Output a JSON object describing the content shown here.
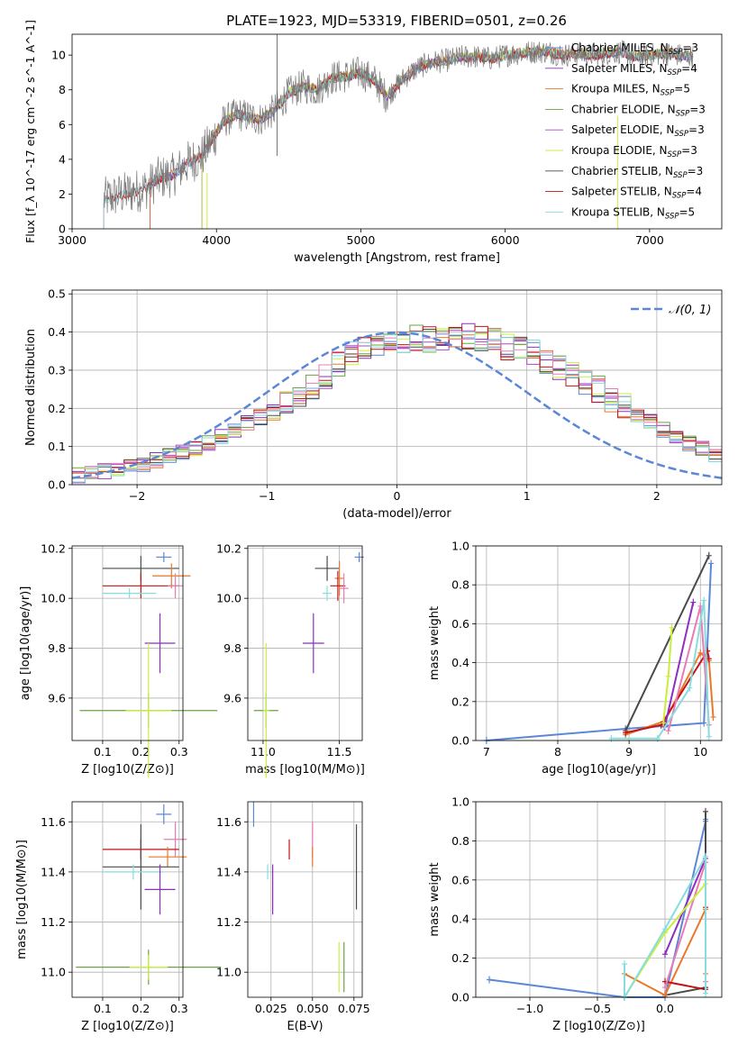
{
  "figure_title": "PLATE=1923, MJD=53319, FIBERID=0501, z=0.26",
  "colors": {
    "Chabrier MILES": "#5b87d6",
    "Salpeter MILES": "#8e2ec1",
    "Kroupa MILES": "#e8782a",
    "Chabrier ELODIE": "#6da145",
    "Salpeter ELODIE": "#b245c9",
    "Kroupa ELODIE": "#c9ef3d",
    "Chabrier STELIB": "#4a4a4a",
    "Salpeter STELIB": "#c41414",
    "Kroupa STELIB": "#87dce0",
    "Pink": "#e87bb5",
    "Normal": "#5b87d6"
  },
  "chart_data": [
    {
      "id": "spectrum",
      "type": "line",
      "title": "PLATE=1923, MJD=53319, FIBERID=0501, z=0.26",
      "xlabel": "wavelength [Angstrom, rest frame]",
      "ylabel": "Flux [f_λ 10^-17 erg cm^-2 s^-1 A^-1]",
      "xlim": [
        3000,
        7500
      ],
      "ylim": [
        0,
        11.2
      ],
      "xticks": [
        "3000",
        "4000",
        "5000",
        "6000",
        "7000"
      ],
      "yticks": [
        "0",
        "2",
        "4",
        "6",
        "8",
        "10"
      ],
      "legend_position": "top-right",
      "legend": [
        {
          "name": "Chabrier MILES, N_SSP=3"
        },
        {
          "name": "Salpeter MILES, N_SSP=4"
        },
        {
          "name": "Kroupa MILES, N_SSP=5"
        },
        {
          "name": "Chabrier ELODIE, N_SSP=3"
        },
        {
          "name": "Salpeter ELODIE, N_SSP=3"
        },
        {
          "name": "Kroupa ELODIE, N_SSP=3"
        },
        {
          "name": "Chabrier STELIB, N_SSP=3"
        },
        {
          "name": "Salpeter STELIB, N_SSP=4"
        },
        {
          "name": "Kroupa STELIB, N_SSP=5"
        }
      ],
      "model_points": [
        [
          3220,
          1.7
        ],
        [
          3300,
          1.9
        ],
        [
          3400,
          2.1
        ],
        [
          3500,
          2.3
        ],
        [
          3600,
          2.9
        ],
        [
          3700,
          3.1
        ],
        [
          3800,
          3.8
        ],
        [
          3900,
          4.2
        ],
        [
          3960,
          5.0
        ],
        [
          4050,
          6.2
        ],
        [
          4150,
          6.6
        ],
        [
          4300,
          6.3
        ],
        [
          4400,
          6.8
        ],
        [
          4500,
          7.8
        ],
        [
          4600,
          8.2
        ],
        [
          4700,
          8.0
        ],
        [
          4800,
          8.7
        ],
        [
          4900,
          8.8
        ],
        [
          5000,
          9.0
        ],
        [
          5100,
          8.5
        ],
        [
          5180,
          7.6
        ],
        [
          5300,
          8.7
        ],
        [
          5400,
          9.3
        ],
        [
          5500,
          9.6
        ],
        [
          5600,
          9.7
        ],
        [
          5700,
          9.9
        ],
        [
          5800,
          9.9
        ],
        [
          5900,
          9.8
        ],
        [
          6000,
          10.0
        ],
        [
          6100,
          10.1
        ],
        [
          6200,
          10.2
        ],
        [
          6300,
          10.2
        ],
        [
          6400,
          10.0
        ],
        [
          6500,
          10.1
        ],
        [
          6600,
          10.0
        ],
        [
          6700,
          10.1
        ],
        [
          6800,
          10.2
        ],
        [
          6900,
          9.9
        ],
        [
          7000,
          10.0
        ],
        [
          7100,
          10.1
        ],
        [
          7200,
          10.0
        ],
        [
          7300,
          9.9
        ]
      ]
    },
    {
      "id": "residuals",
      "type": "bar",
      "xlabel": "(data-model)/error",
      "ylabel": "Normed distribution",
      "xlim": [
        -2.5,
        2.5
      ],
      "ylim": [
        0,
        0.51
      ],
      "xticks": [
        "−2",
        "−1",
        "0",
        "1",
        "2"
      ],
      "yticks": [
        "0.0",
        "0.1",
        "0.2",
        "0.3",
        "0.4",
        "0.5"
      ],
      "legend_position": "top-right",
      "legend": [
        {
          "name": "𝒩(0, 1)"
        }
      ],
      "bin_width": 0.1,
      "bin_start": -2.5,
      "reference_heights": [
        0.025,
        0.03,
        0.035,
        0.04,
        0.05,
        0.055,
        0.065,
        0.075,
        0.085,
        0.095,
        0.11,
        0.125,
        0.14,
        0.16,
        0.175,
        0.19,
        0.21,
        0.23,
        0.255,
        0.285,
        0.315,
        0.34,
        0.355,
        0.37,
        0.375,
        0.37,
        0.385,
        0.38,
        0.38,
        0.385,
        0.39,
        0.385,
        0.375,
        0.36,
        0.355,
        0.345,
        0.325,
        0.305,
        0.29,
        0.27,
        0.25,
        0.225,
        0.205,
        0.185,
        0.165,
        0.145,
        0.125,
        0.11,
        0.095,
        0.08
      ]
    },
    {
      "id": "age-vs-Z",
      "type": "scatter",
      "xlabel": "Z [log10(Z/Z⊙)]",
      "ylabel": "age  [log10(age/yr)]",
      "xlim": [
        0.02,
        0.31
      ],
      "ylim": [
        9.43,
        10.21
      ],
      "xticks": [
        "0.1",
        "0.2",
        "0.3"
      ],
      "yticks": [
        "9.6",
        "9.8",
        "10.0",
        "10.2"
      ],
      "points": [
        {
          "series": "Chabrier MILES",
          "x": 0.26,
          "y": 10.165,
          "xerr": 0.02,
          "yerr": 0.02
        },
        {
          "series": "Chabrier STELIB",
          "x": 0.2,
          "y": 10.12,
          "xerr": 0.1,
          "yerr": 0.05
        },
        {
          "series": "Kroupa MILES",
          "x": 0.28,
          "y": 10.09,
          "xerr": 0.05,
          "yerr": 0.05
        },
        {
          "series": "Salpeter STELIB",
          "x": 0.2,
          "y": 10.05,
          "xerr": 0.1,
          "yerr": 0.05
        },
        {
          "series": "Pink",
          "x": 0.29,
          "y": 10.05,
          "xerr": 0.02,
          "yerr": 0.05
        },
        {
          "series": "Kroupa STELIB",
          "x": 0.17,
          "y": 10.02,
          "xerr": 0.07,
          "yerr": 0.02
        },
        {
          "series": "Salpeter MILES",
          "x": 0.25,
          "y": 9.82,
          "xerr": 0.04,
          "yerr": 0.12
        },
        {
          "series": "Chabrier ELODIE",
          "x": 0.22,
          "y": 9.55,
          "xerr": 0.18,
          "yerr": 0.07
        },
        {
          "series": "Kroupa ELODIE",
          "x": 0.22,
          "y": 9.55,
          "xerr": 0.06,
          "yerr": 0.27
        }
      ]
    },
    {
      "id": "age-vs-mass",
      "type": "scatter",
      "xlabel": "mass [log10(M/M⊙)]",
      "ylabel": "",
      "xlim": [
        10.9,
        11.65
      ],
      "ylim": [
        9.43,
        10.21
      ],
      "xticks": [
        "11.0",
        "11.5"
      ],
      "yticks": [
        "9.6",
        "9.8",
        "10.0",
        "10.2"
      ],
      "points": [
        {
          "series": "Chabrier MILES",
          "x": 11.63,
          "y": 10.165,
          "xerr": 0.03,
          "yerr": 0.02
        },
        {
          "series": "Chabrier STELIB",
          "x": 11.42,
          "y": 10.12,
          "xerr": 0.08,
          "yerr": 0.05
        },
        {
          "series": "Kroupa MILES",
          "x": 11.5,
          "y": 10.08,
          "xerr": 0.03,
          "yerr": 0.07
        },
        {
          "series": "Salpeter STELIB",
          "x": 11.49,
          "y": 10.05,
          "xerr": 0.05,
          "yerr": 0.06
        },
        {
          "series": "Pink",
          "x": 11.53,
          "y": 10.04,
          "xerr": 0.03,
          "yerr": 0.06
        },
        {
          "series": "Kroupa STELIB",
          "x": 11.42,
          "y": 10.02,
          "xerr": 0.03,
          "yerr": 0.03
        },
        {
          "series": "Salpeter MILES",
          "x": 11.33,
          "y": 9.82,
          "xerr": 0.07,
          "yerr": 0.12
        },
        {
          "series": "Chabrier ELODIE",
          "x": 11.02,
          "y": 9.55,
          "xerr": 0.08,
          "yerr": 0.07
        },
        {
          "series": "Kroupa ELODIE",
          "x": 11.02,
          "y": 9.55,
          "xerr": 0.02,
          "yerr": 0.27
        }
      ]
    },
    {
      "id": "massweight-vs-age",
      "type": "line",
      "xlabel": "age  [log10(age/yr)]",
      "ylabel": "mass weight",
      "xlim": [
        6.85,
        10.3
      ],
      "ylim": [
        0,
        1.0
      ],
      "xticks": [
        "7",
        "8",
        "9",
        "10"
      ],
      "yticks": [
        "0.0",
        "0.2",
        "0.4",
        "0.6",
        "0.8",
        "1.0"
      ],
      "series": [
        {
          "color": "Chabrier MILES",
          "x": [
            7.0,
            8.95,
            10.05,
            10.15
          ],
          "y": [
            0.0,
            0.06,
            0.09,
            0.91
          ]
        },
        {
          "color": "Chabrier STELIB",
          "x": [
            8.95,
            10.12
          ],
          "y": [
            0.05,
            0.95
          ]
        },
        {
          "color": "Kroupa MILES",
          "x": [
            8.95,
            9.5,
            10.0,
            10.12,
            10.18
          ],
          "y": [
            0.03,
            0.1,
            0.45,
            0.41,
            0.12
          ]
        },
        {
          "color": "Salpeter STELIB",
          "x": [
            8.95,
            9.45,
            10.1,
            10.12
          ],
          "y": [
            0.04,
            0.08,
            0.46,
            0.42
          ]
        },
        {
          "color": "Salpeter MILES",
          "x": [
            9.5,
            9.9
          ],
          "y": [
            0.07,
            0.71
          ]
        },
        {
          "color": "Pink",
          "x": [
            9.55,
            10.0,
            10.12
          ],
          "y": [
            0.05,
            0.69,
            0.08
          ]
        },
        {
          "color": "Kroupa ELODIE",
          "x": [
            9.48,
            9.55,
            9.6
          ],
          "y": [
            0.09,
            0.33,
            0.58
          ]
        },
        {
          "color": "Kroupa STELIB",
          "x": [
            8.75,
            9.4,
            9.85,
            10.05,
            10.12
          ],
          "y": [
            0.01,
            0.01,
            0.27,
            0.72,
            0.02
          ]
        }
      ]
    },
    {
      "id": "mass-vs-Z",
      "type": "scatter",
      "xlabel": "Z [log10(Z/Z⊙)]",
      "ylabel": "mass [log10(M/M⊙)]",
      "xlim": [
        0.02,
        0.31
      ],
      "ylim": [
        10.9,
        11.68
      ],
      "xticks": [
        "0.1",
        "0.2",
        "0.3"
      ],
      "yticks": [
        "11.0",
        "11.2",
        "11.4",
        "11.6"
      ],
      "points": [
        {
          "series": "Chabrier MILES",
          "x": 0.26,
          "y": 11.63,
          "xerr": 0.02,
          "yerr": 0.04
        },
        {
          "series": "Pink",
          "x": 0.29,
          "y": 11.53,
          "xerr": 0.03,
          "yerr": 0.07
        },
        {
          "series": "Salpeter STELIB",
          "x": 0.2,
          "y": 11.49,
          "xerr": 0.1,
          "yerr": 0.04
        },
        {
          "series": "Kroupa MILES",
          "x": 0.27,
          "y": 11.46,
          "xerr": 0.05,
          "yerr": 0.04
        },
        {
          "series": "Chabrier STELIB",
          "x": 0.2,
          "y": 11.42,
          "xerr": 0.1,
          "yerr": 0.17
        },
        {
          "series": "Kroupa STELIB",
          "x": 0.18,
          "y": 11.4,
          "xerr": 0.08,
          "yerr": 0.03
        },
        {
          "series": "Salpeter MILES",
          "x": 0.25,
          "y": 11.33,
          "xerr": 0.04,
          "yerr": 0.1
        },
        {
          "series": "Chabrier ELODIE",
          "x": 0.22,
          "y": 11.02,
          "xerr": 0.19,
          "yerr": 0.07
        },
        {
          "series": "Kroupa ELODIE",
          "x": 0.22,
          "y": 11.02,
          "xerr": 0.05,
          "yerr": 0.05
        }
      ]
    },
    {
      "id": "mass-vs-ebv",
      "type": "scatter",
      "xlabel": "E(B-V)",
      "ylabel": "",
      "xlim": [
        0.011,
        0.08
      ],
      "ylim": [
        10.9,
        11.68
      ],
      "xticks": [
        "0.025",
        "0.050",
        "0.075"
      ],
      "yticks": [
        "11.0",
        "11.2",
        "11.4",
        "11.6"
      ],
      "points": [
        {
          "series": "Chabrier MILES",
          "x": 0.0145,
          "y": 11.63,
          "xerr": 0,
          "yerr": 0.05
        },
        {
          "series": "Pink",
          "x": 0.05,
          "y": 11.53,
          "xerr": 0,
          "yerr": 0.07
        },
        {
          "series": "Salpeter STELIB",
          "x": 0.036,
          "y": 11.49,
          "xerr": 0,
          "yerr": 0.04
        },
        {
          "series": "Kroupa MILES",
          "x": 0.05,
          "y": 11.46,
          "xerr": 0,
          "yerr": 0.04
        },
        {
          "series": "Chabrier STELIB",
          "x": 0.0765,
          "y": 11.42,
          "xerr": 0,
          "yerr": 0.17
        },
        {
          "series": "Kroupa STELIB",
          "x": 0.023,
          "y": 11.4,
          "xerr": 0,
          "yerr": 0.03
        },
        {
          "series": "Salpeter MILES",
          "x": 0.026,
          "y": 11.33,
          "xerr": 0,
          "yerr": 0.1
        },
        {
          "series": "Chabrier ELODIE",
          "x": 0.069,
          "y": 11.02,
          "xerr": 0,
          "yerr": 0.1
        },
        {
          "series": "Kroupa ELODIE",
          "x": 0.066,
          "y": 11.02,
          "xerr": 0,
          "yerr": 0.1
        }
      ]
    },
    {
      "id": "massweight-vs-Z",
      "type": "line",
      "xlabel": "Z [log10(Z/Z⊙)]",
      "ylabel": "mass weight",
      "xlim": [
        -1.4,
        0.42
      ],
      "ylim": [
        0,
        1.0
      ],
      "xticks": [
        "−1.0",
        "−0.5",
        "0.0"
      ],
      "yticks": [
        "0.0",
        "0.2",
        "0.4",
        "0.6",
        "0.8",
        "1.0"
      ],
      "series": [
        {
          "color": "Chabrier MILES",
          "x": [
            -1.3,
            -0.3,
            0.0,
            0.3,
            0.3
          ],
          "y": [
            0.09,
            0.0,
            0.0,
            0.9,
            0.91
          ]
        },
        {
          "color": "Chabrier STELIB",
          "x": [
            0.0,
            0.3,
            0.3
          ],
          "y": [
            0.01,
            0.05,
            0.95
          ]
        },
        {
          "color": "Kroupa MILES",
          "x": [
            -0.3,
            0.0,
            0.3,
            0.3
          ],
          "y": [
            0.12,
            0.01,
            0.45,
            0.12
          ]
        },
        {
          "color": "Salpeter STELIB",
          "x": [
            0.0,
            0.3,
            0.3
          ],
          "y": [
            0.08,
            0.04,
            0.46
          ]
        },
        {
          "color": "Salpeter MILES",
          "x": [
            0.0,
            0.3
          ],
          "y": [
            0.22,
            0.71
          ]
        },
        {
          "color": "Pink",
          "x": [
            0.0,
            0.3,
            0.3
          ],
          "y": [
            0.05,
            0.69,
            0.08
          ]
        },
        {
          "color": "Kroupa ELODIE",
          "x": [
            -0.3,
            0.0,
            0.3
          ],
          "y": [
            0.0,
            0.33,
            0.58
          ]
        },
        {
          "color": "Kroupa STELIB",
          "x": [
            -0.3,
            -0.3,
            0.0,
            0.3,
            0.3
          ],
          "y": [
            0.17,
            0.0,
            0.35,
            0.72,
            0.02
          ]
        }
      ]
    }
  ]
}
